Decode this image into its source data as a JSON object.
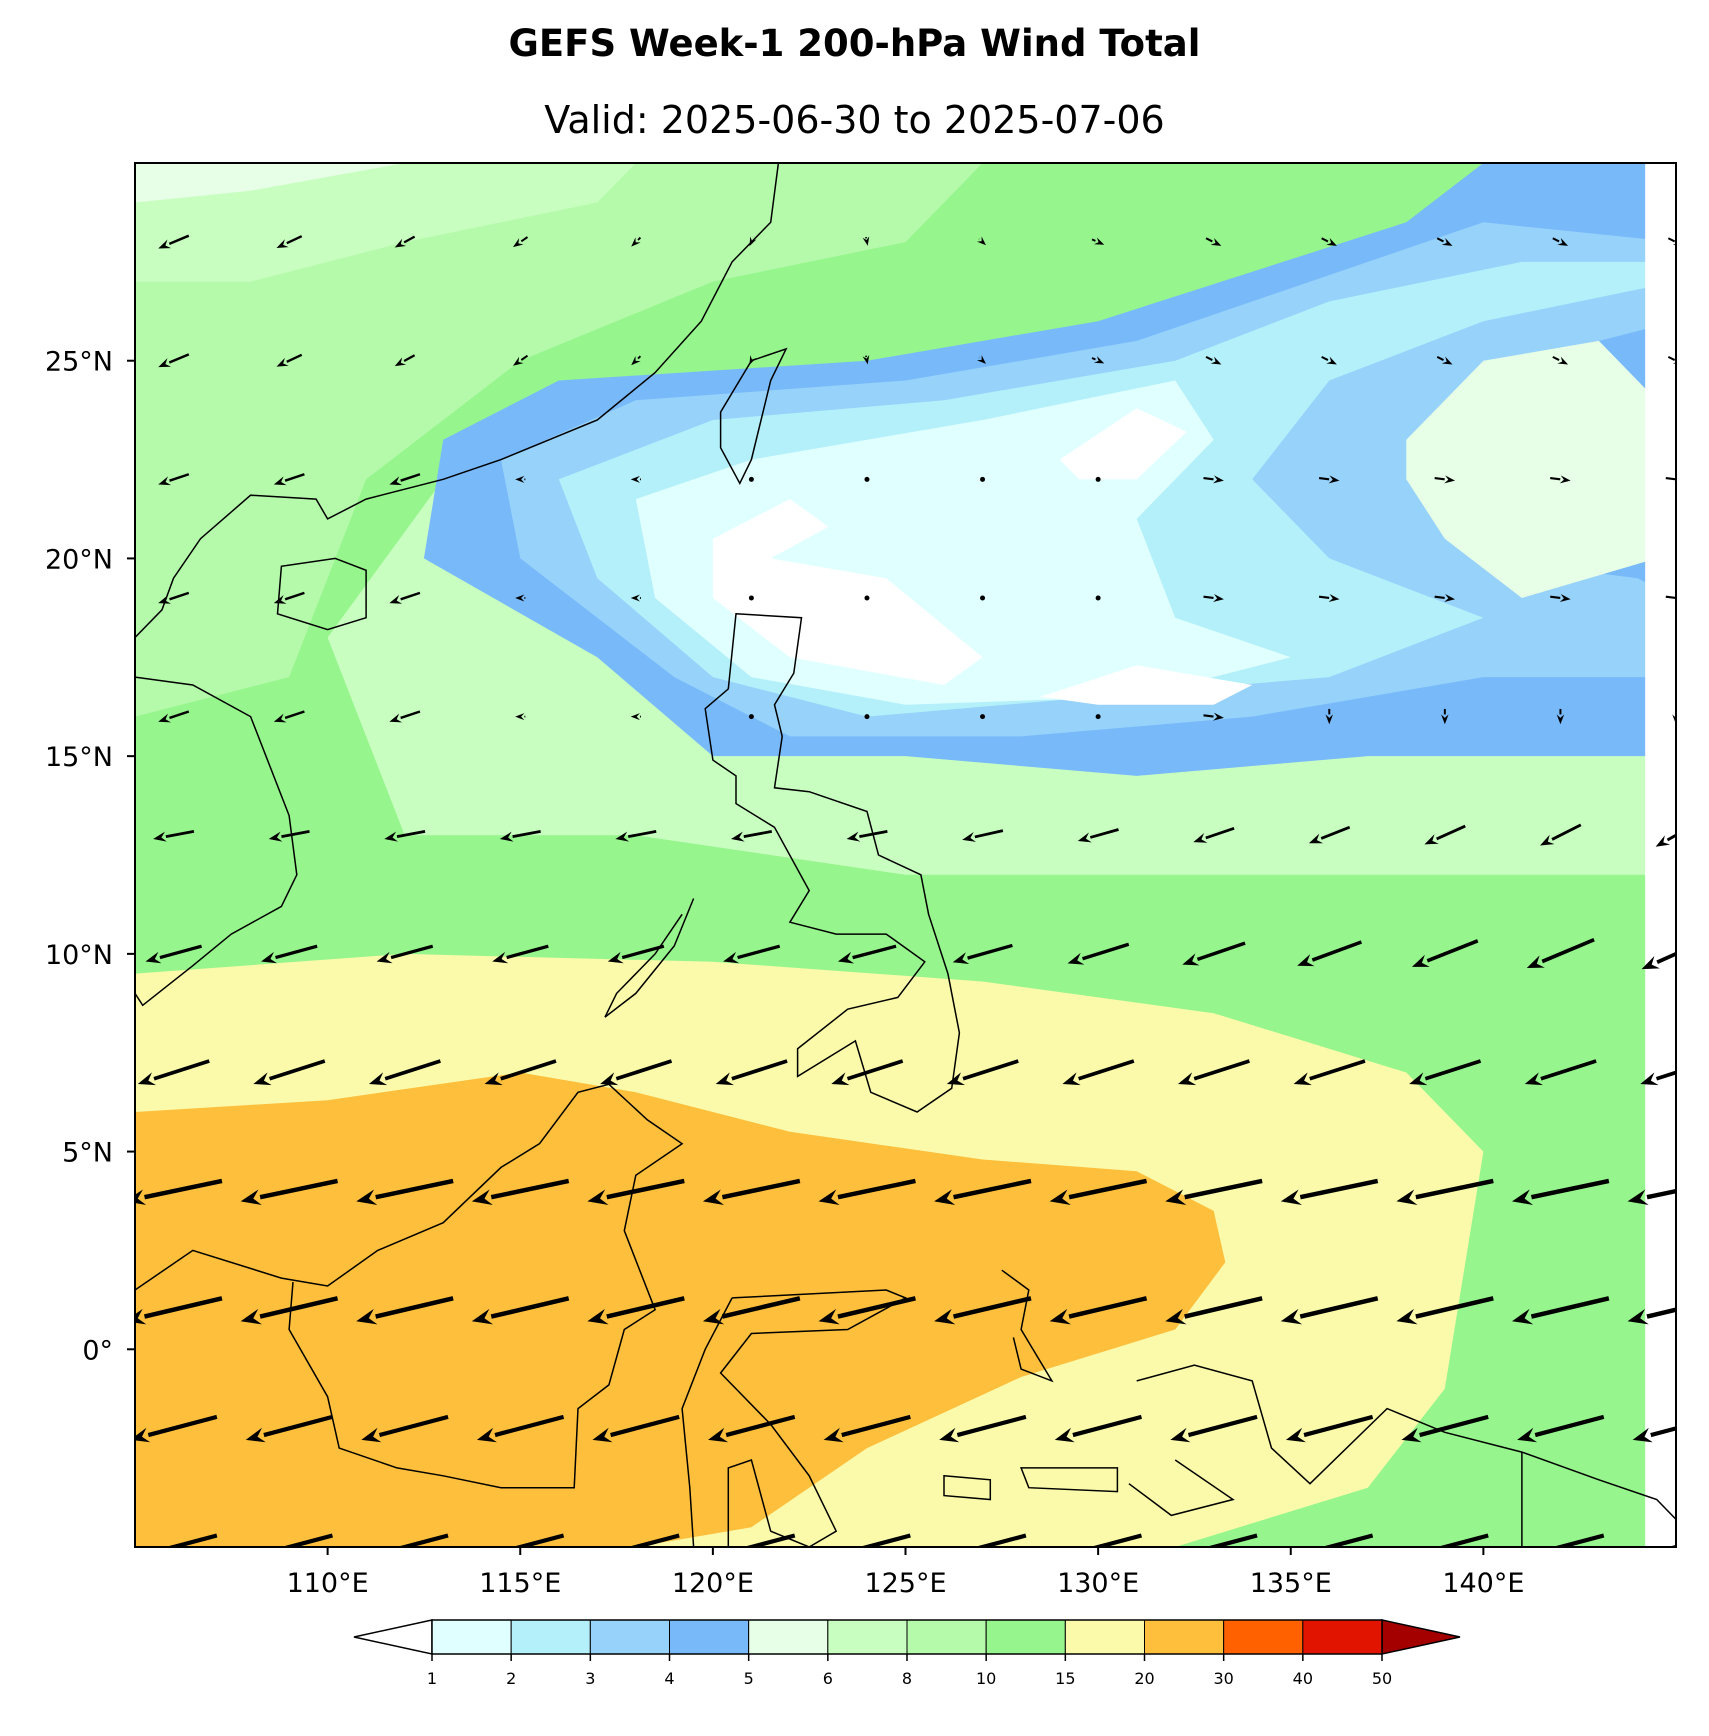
{
  "title": "GEFS Week-1 200-hPa Wind Total",
  "subtitle": "Valid: 2025-06-30 to 2025-07-06",
  "map_extent": {
    "lon": [
      105,
      145
    ],
    "lat": [
      -5,
      30
    ]
  },
  "lat_ticks": [
    {
      "value": 25,
      "label": "25°N"
    },
    {
      "value": 20,
      "label": "20°N"
    },
    {
      "value": 15,
      "label": "15°N"
    },
    {
      "value": 10,
      "label": "10°N"
    },
    {
      "value": 5,
      "label": "5°N"
    },
    {
      "value": 0,
      "label": "0°"
    }
  ],
  "lon_ticks": [
    {
      "value": 110,
      "label": "110°E"
    },
    {
      "value": 115,
      "label": "115°E"
    },
    {
      "value": 120,
      "label": "120°E"
    },
    {
      "value": 125,
      "label": "125°E"
    },
    {
      "value": 130,
      "label": "130°E"
    },
    {
      "value": 135,
      "label": "135°E"
    },
    {
      "value": 140,
      "label": "140°E"
    }
  ],
  "colorbar": {
    "levels": [
      "1",
      "2",
      "3",
      "4",
      "5",
      "6",
      "8",
      "10",
      "15",
      "20",
      "30",
      "40",
      "50"
    ],
    "colors": [
      "#e0ffff",
      "#b4f0fa",
      "#96d2fa",
      "#78b9fa",
      "#e6ffe6",
      "#c8ffc0",
      "#b4faaa",
      "#96f58c",
      "#fafaaa",
      "#fdbf3c",
      "#ff6000",
      "#e11400",
      "#a50000"
    ],
    "under_color": "#ffffff",
    "over_color": "#a50000"
  },
  "wind_field": {
    "lons": [
      106,
      109,
      112,
      115,
      118,
      121,
      124,
      127,
      130,
      133,
      136,
      139,
      142,
      145
    ],
    "lats": [
      28,
      25,
      22,
      19,
      16,
      13,
      10,
      7,
      4,
      1,
      -2,
      -5
    ],
    "description": "vector arrows show 200-hPa wind direction; length proportional to speed (m/s)"
  }
}
